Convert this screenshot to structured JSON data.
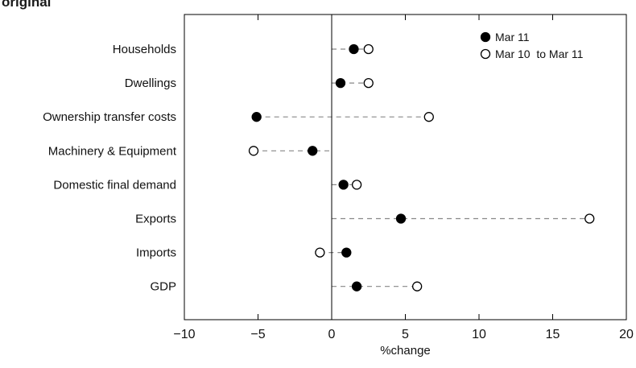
{
  "header": {
    "corner_text": "original"
  },
  "chart_data": {
    "type": "scatter",
    "title": "",
    "xlabel": "%change",
    "ylabel": "",
    "xlim": [
      -10,
      20
    ],
    "xticks": [
      -10,
      -5,
      0,
      5,
      10,
      15,
      20
    ],
    "xtick_labels": [
      "−10",
      "−5",
      "0",
      "5",
      "10",
      "15",
      "20"
    ],
    "grid": false,
    "legend_position": "top-right",
    "categories": [
      "Households",
      "Dwellings",
      "Ownership transfer costs",
      "Machinery & Equipment",
      "Domestic final demand",
      "Exports",
      "Imports",
      "GDP"
    ],
    "series": [
      {
        "name": "Mar 11",
        "marker": "filled-circle",
        "values": [
          1.5,
          0.6,
          -5.1,
          -1.3,
          0.8,
          4.7,
          1.0,
          1.7
        ]
      },
      {
        "name": "Mar 10  to Mar 11",
        "marker": "open-circle",
        "values": [
          2.5,
          2.5,
          6.6,
          -5.3,
          1.7,
          17.5,
          -0.8,
          5.8
        ]
      }
    ],
    "colors": {
      "marker": "#000000",
      "connector": "#888888",
      "axis": "#000000"
    }
  }
}
